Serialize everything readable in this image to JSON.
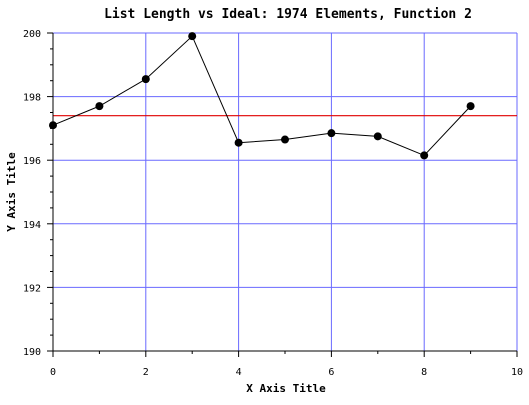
{
  "chart_data": {
    "type": "line",
    "title": "List Length vs Ideal: 1974 Elements, Function 2",
    "xlabel": "X Axis Title",
    "ylabel": "Y Axis Title",
    "xlim": [
      0,
      10
    ],
    "ylim": [
      190,
      200
    ],
    "x_ticks": [
      "0",
      "2",
      "4",
      "6",
      "8",
      "10"
    ],
    "y_ticks": [
      "190",
      "192",
      "194",
      "196",
      "198",
      "200"
    ],
    "grid": true,
    "legend": "none",
    "series": [
      {
        "x": [
          0,
          1,
          2,
          3,
          4,
          5,
          6,
          7,
          8,
          9
        ],
        "y": [
          197.1,
          197.7,
          198.55,
          199.9,
          196.55,
          196.65,
          196.85,
          196.75,
          196.15,
          197.7
        ],
        "color": "#000000",
        "marker": "circle"
      }
    ],
    "reference_line": {
      "y": 197.4,
      "color": "#e00000"
    },
    "colors": {
      "grid": "#6a6aff",
      "axis": "#000000",
      "series": "#000000",
      "reference": "#e00000"
    }
  }
}
